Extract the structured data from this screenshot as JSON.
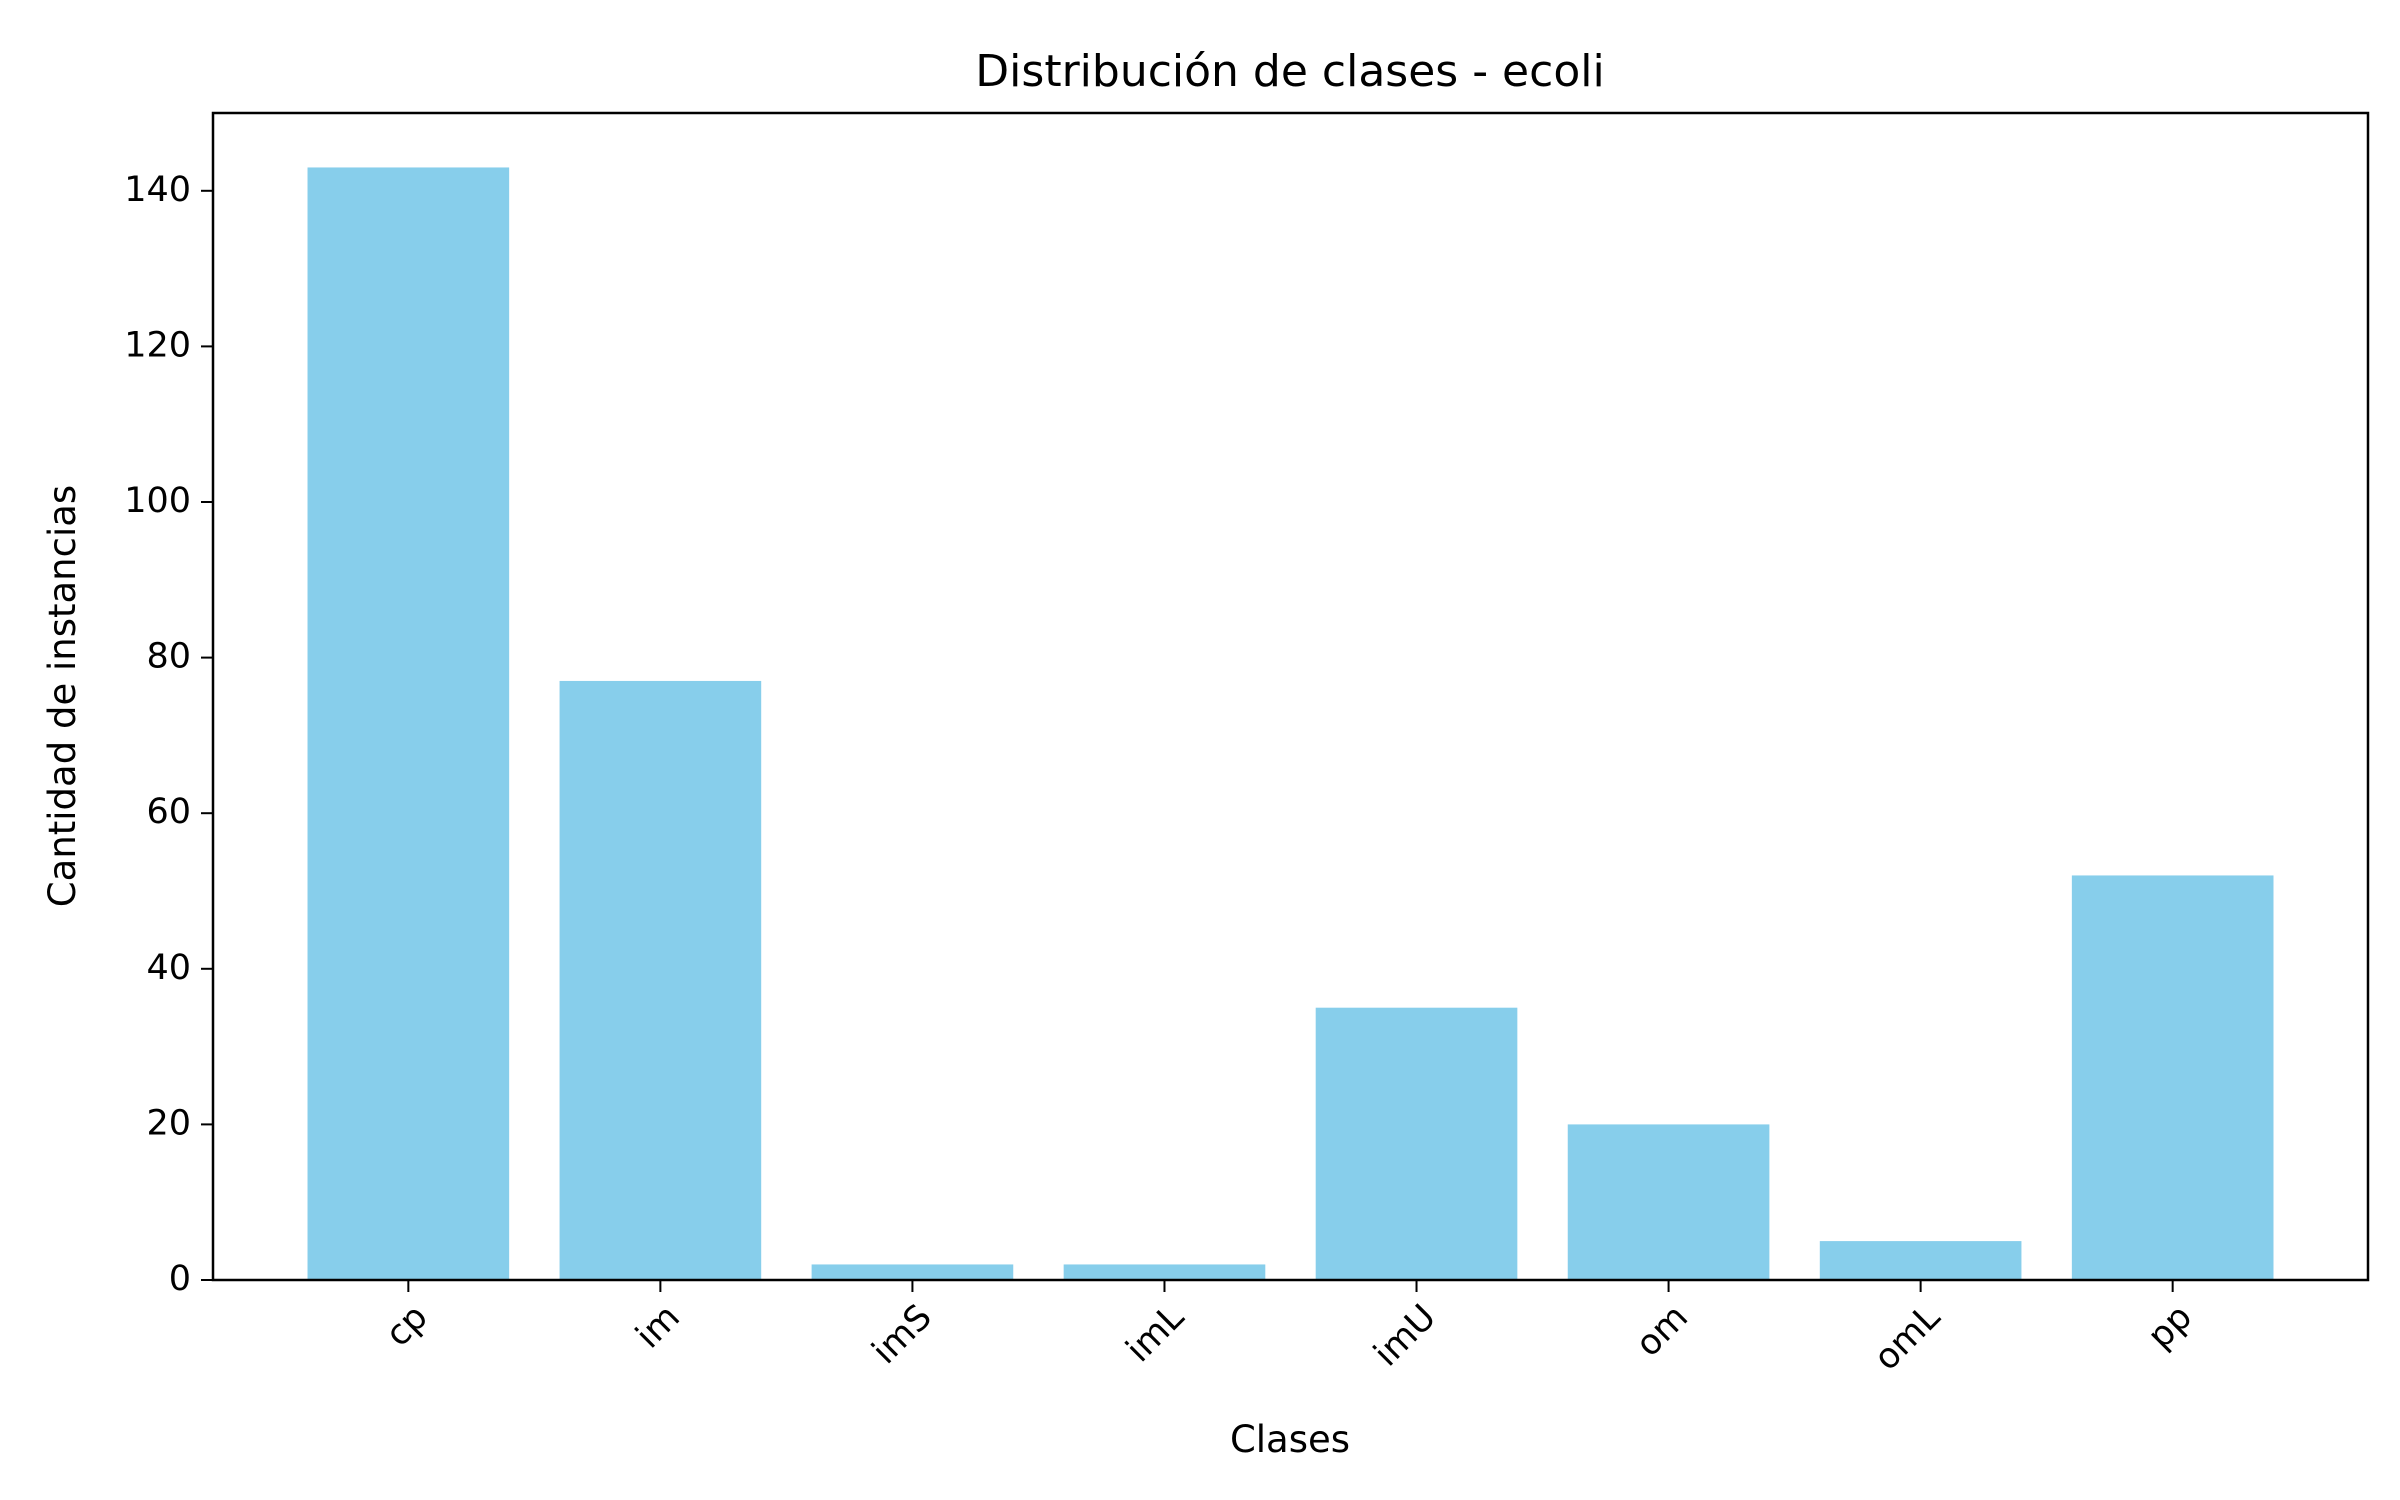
{
  "chart_data": {
    "type": "bar",
    "title": "Distribución de clases - ecoli",
    "xlabel": "Clases",
    "ylabel": "Cantidad de instancias",
    "categories": [
      "cp",
      "im",
      "imS",
      "imL",
      "imU",
      "om",
      "omL",
      "pp"
    ],
    "values": [
      143,
      77,
      2,
      2,
      35,
      20,
      5,
      52
    ],
    "ylim": [
      0,
      150
    ],
    "yticks": [
      0,
      20,
      40,
      60,
      80,
      100,
      120,
      140
    ],
    "ytick_labels": [
      "0",
      "20",
      "40",
      "60",
      "80",
      "100",
      "120",
      "140"
    ],
    "xtick_rotation": 45,
    "bar_color": "#87CEEB",
    "grid": false,
    "legend": "none"
  }
}
